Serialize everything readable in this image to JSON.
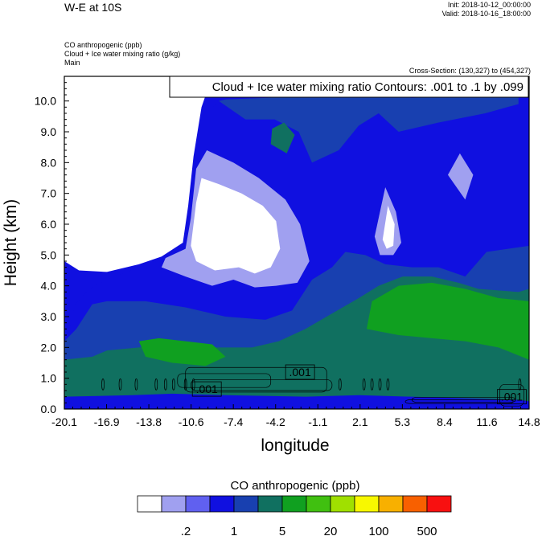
{
  "header": {
    "title": "W-E at 10S",
    "init": "Init: 2018-10-12_00:00:00",
    "valid": "Valid: 2018-10-16_18:00:00",
    "fields": [
      "CO anthropogenic   (ppb)",
      "Cloud + Ice water mixing ratio   (g/kg)",
      "Main"
    ],
    "cross_section": "Cross-Section: (130,327) to (454,327)"
  },
  "chart_data": {
    "type": "heatmap",
    "title": "W-E at 10S",
    "xlabel": "longitude",
    "ylabel": "Height (km)",
    "x_ticks": [
      "-20.1",
      "-16.9",
      "-13.8",
      "-10.6",
      "-7.4",
      "-4.2",
      "-1.1",
      "2.1",
      "5.3",
      "8.4",
      "11.6",
      "14.8"
    ],
    "xlim": [
      -20.1,
      14.8
    ],
    "y_ticks": [
      "0.0",
      "1.0",
      "2.0",
      "3.0",
      "4.0",
      "5.0",
      "6.0",
      "7.0",
      "8.0",
      "9.0",
      "10.0"
    ],
    "ylim": [
      0,
      10.8
    ],
    "contour_info": "Cloud + Ice water mixing ratio Contours: .001 to .1 by .099",
    "contour_labels": [
      {
        "text": ".001",
        "lon": -9.4,
        "height": 0.65
      },
      {
        "text": ".001",
        "lon": -2.4,
        "height": 1.2
      },
      {
        "text": ".001",
        "lon": 13.5,
        "height": 0.4
      }
    ],
    "colorbar": {
      "title": "CO anthropogenic  (ppb)",
      "colors": [
        "#ffffff",
        "#a0a0f0",
        "#6060f0",
        "#1010e0",
        "#1840b0",
        "#107060",
        "#10a020",
        "#40c010",
        "#a0e000",
        "#f8f800",
        "#f8b000",
        "#f86000",
        "#f81010"
      ],
      "labels": [
        ".2",
        "1",
        "5",
        "20",
        "100",
        "500"
      ]
    },
    "regions": [
      {
        "fill": "#1010e0",
        "points": [
          [
            -20.1,
            0
          ],
          [
            -20.1,
            1.8
          ],
          [
            -19.3,
            3.4
          ],
          [
            -18.2,
            3.9
          ],
          [
            -16.9,
            4.2
          ],
          [
            -14.5,
            4.6
          ],
          [
            -12.5,
            4.9
          ],
          [
            -10.6,
            5.4
          ],
          [
            -10.0,
            6.6
          ],
          [
            -9.6,
            8.0
          ],
          [
            -9.0,
            9.8
          ],
          [
            -8.0,
            10.05
          ],
          [
            -5.0,
            10.1
          ],
          [
            -2.5,
            10.15
          ],
          [
            0.0,
            10.2
          ],
          [
            3.0,
            10.3
          ],
          [
            6.0,
            10.1
          ],
          [
            10.0,
            10.2
          ],
          [
            14.0,
            10.1
          ],
          [
            14.8,
            10.0
          ],
          [
            14.8,
            0
          ]
        ]
      },
      {
        "fill": "#1840b0",
        "points": [
          [
            -8.5,
            10.0
          ],
          [
            -6.5,
            9.4
          ],
          [
            -4.3,
            9.4
          ],
          [
            -2.5,
            9.0
          ],
          [
            -1.5,
            8.0
          ],
          [
            0.5,
            8.4
          ],
          [
            2.0,
            9.2
          ],
          [
            3.5,
            9.6
          ],
          [
            5.0,
            9.0
          ],
          [
            8.0,
            9.3
          ],
          [
            11.5,
            9.6
          ],
          [
            14.0,
            9.9
          ],
          [
            14.0,
            10.15
          ],
          [
            10.0,
            10.2
          ],
          [
            6.0,
            10.1
          ],
          [
            3.0,
            10.3
          ],
          [
            0.0,
            10.2
          ],
          [
            -5.0,
            10.1
          ],
          [
            -8.0,
            10.05
          ]
        ]
      },
      {
        "fill": "#107060",
        "points": [
          [
            -4.6,
            8.6
          ],
          [
            -3.4,
            8.3
          ],
          [
            -2.8,
            8.9
          ],
          [
            -3.6,
            9.3
          ],
          [
            -4.5,
            9.1
          ]
        ]
      },
      {
        "fill": "#a0a0f0",
        "points": [
          [
            -12.5,
            4.9
          ],
          [
            -11.0,
            5.2
          ],
          [
            -10.6,
            6.2
          ],
          [
            -10.2,
            7.8
          ],
          [
            -9.4,
            8.4
          ],
          [
            -7.4,
            8.0
          ],
          [
            -5.5,
            7.5
          ],
          [
            -3.5,
            6.8
          ],
          [
            -2.4,
            6.0
          ],
          [
            -1.7,
            4.8
          ],
          [
            -2.6,
            4.1
          ],
          [
            -4.2,
            4.0
          ],
          [
            -5.8,
            3.95
          ],
          [
            -7.4,
            4.2
          ],
          [
            -9.0,
            4.0
          ],
          [
            -11.0,
            4.3
          ],
          [
            -12.8,
            4.6
          ]
        ]
      },
      {
        "fill": "#ffffff",
        "points": [
          [
            -10.6,
            5.3
          ],
          [
            -10.2,
            6.7
          ],
          [
            -9.8,
            7.5
          ],
          [
            -8.5,
            7.3
          ],
          [
            -6.8,
            7.0
          ],
          [
            -5.2,
            6.6
          ],
          [
            -4.2,
            6.1
          ],
          [
            -3.9,
            5.2
          ],
          [
            -4.6,
            4.6
          ],
          [
            -5.8,
            4.4
          ],
          [
            -7.0,
            4.6
          ],
          [
            -8.8,
            4.5
          ],
          [
            -10.2,
            4.8
          ]
        ]
      },
      {
        "fill": "#ffffff",
        "points": [
          [
            -20.1,
            10.8
          ],
          [
            -20.1,
            4.8
          ],
          [
            -19.0,
            4.5
          ],
          [
            -16.9,
            4.45
          ],
          [
            -14.5,
            4.7
          ],
          [
            -12.8,
            4.95
          ],
          [
            -11.2,
            5.4
          ],
          [
            -10.8,
            6.6
          ],
          [
            -10.4,
            8.2
          ],
          [
            -9.8,
            9.8
          ],
          [
            -9.0,
            10.8
          ]
        ]
      },
      {
        "fill": "#a0a0f0",
        "points": [
          [
            3.2,
            5.6
          ],
          [
            4.0,
            7.2
          ],
          [
            4.8,
            6.4
          ],
          [
            5.2,
            5.4
          ],
          [
            4.6,
            5.0
          ],
          [
            3.6,
            5.0
          ]
        ]
      },
      {
        "fill": "#ffffff",
        "points": [
          [
            3.8,
            5.5
          ],
          [
            4.2,
            6.6
          ],
          [
            4.7,
            6.0
          ],
          [
            4.6,
            5.3
          ],
          [
            4.1,
            5.2
          ]
        ]
      },
      {
        "fill": "#a0a0f0",
        "points": [
          [
            8.7,
            7.6
          ],
          [
            9.6,
            8.3
          ],
          [
            10.6,
            7.6
          ],
          [
            10.0,
            6.8
          ]
        ]
      },
      {
        "fill": "#1840b0",
        "points": [
          [
            -20.1,
            0
          ],
          [
            -20.1,
            2.2
          ],
          [
            -19.2,
            2.6
          ],
          [
            -18.0,
            3.4
          ],
          [
            -16.9,
            3.5
          ],
          [
            -14.0,
            3.5
          ],
          [
            -11.0,
            3.3
          ],
          [
            -8.0,
            3.0
          ],
          [
            -5.0,
            2.9
          ],
          [
            -3.0,
            3.2
          ],
          [
            -1.5,
            4.2
          ],
          [
            0.0,
            4.6
          ],
          [
            1.0,
            5.1
          ],
          [
            2.5,
            5.0
          ],
          [
            4.0,
            4.7
          ],
          [
            6.0,
            4.6
          ],
          [
            8.0,
            4.6
          ],
          [
            10.0,
            4.3
          ],
          [
            11.6,
            5.1
          ],
          [
            14.8,
            5.3
          ],
          [
            14.8,
            0
          ]
        ]
      },
      {
        "fill": "#107060",
        "points": [
          [
            -20.1,
            0
          ],
          [
            -20.1,
            1.6
          ],
          [
            -18.0,
            1.7
          ],
          [
            -16.9,
            1.9
          ],
          [
            -14.5,
            2.0
          ],
          [
            -12.0,
            2.1
          ],
          [
            -9.0,
            2.0
          ],
          [
            -6.0,
            2.0
          ],
          [
            -4.0,
            2.2
          ],
          [
            -2.0,
            2.6
          ],
          [
            0.0,
            3.1
          ],
          [
            2.0,
            3.6
          ],
          [
            3.5,
            4.0
          ],
          [
            5.3,
            4.3
          ],
          [
            7.5,
            4.3
          ],
          [
            9.5,
            4.1
          ],
          [
            11.0,
            3.9
          ],
          [
            14.0,
            3.8
          ],
          [
            14.8,
            3.9
          ],
          [
            14.8,
            0
          ]
        ]
      },
      {
        "fill": "#10a020",
        "points": [
          [
            2.6,
            2.6
          ],
          [
            3.0,
            3.5
          ],
          [
            5.0,
            4.0
          ],
          [
            7.5,
            4.1
          ],
          [
            10.0,
            3.9
          ],
          [
            12.5,
            3.6
          ],
          [
            14.8,
            3.5
          ],
          [
            14.8,
            1.6
          ],
          [
            12.5,
            2.0
          ],
          [
            10.0,
            2.2
          ],
          [
            7.5,
            2.3
          ],
          [
            5.0,
            2.4
          ]
        ]
      },
      {
        "fill": "#10a020",
        "points": [
          [
            -14.5,
            2.2
          ],
          [
            -13.0,
            2.3
          ],
          [
            -11.0,
            2.2
          ],
          [
            -9.0,
            2.1
          ],
          [
            -8.0,
            1.7
          ],
          [
            -9.5,
            1.4
          ],
          [
            -12.0,
            1.5
          ],
          [
            -14.0,
            1.7
          ]
        ]
      },
      {
        "fill": "#1010e0",
        "points": [
          [
            -20.1,
            0
          ],
          [
            -20.1,
            0.4
          ],
          [
            -15.0,
            0.45
          ],
          [
            -12.0,
            0.5
          ],
          [
            -8.0,
            0.45
          ],
          [
            -2.0,
            0.4
          ],
          [
            2.0,
            0.45
          ],
          [
            6.0,
            0.4
          ],
          [
            10.0,
            0.35
          ],
          [
            14.0,
            0.3
          ],
          [
            14.8,
            0.25
          ],
          [
            14.8,
            0
          ]
        ]
      }
    ]
  }
}
